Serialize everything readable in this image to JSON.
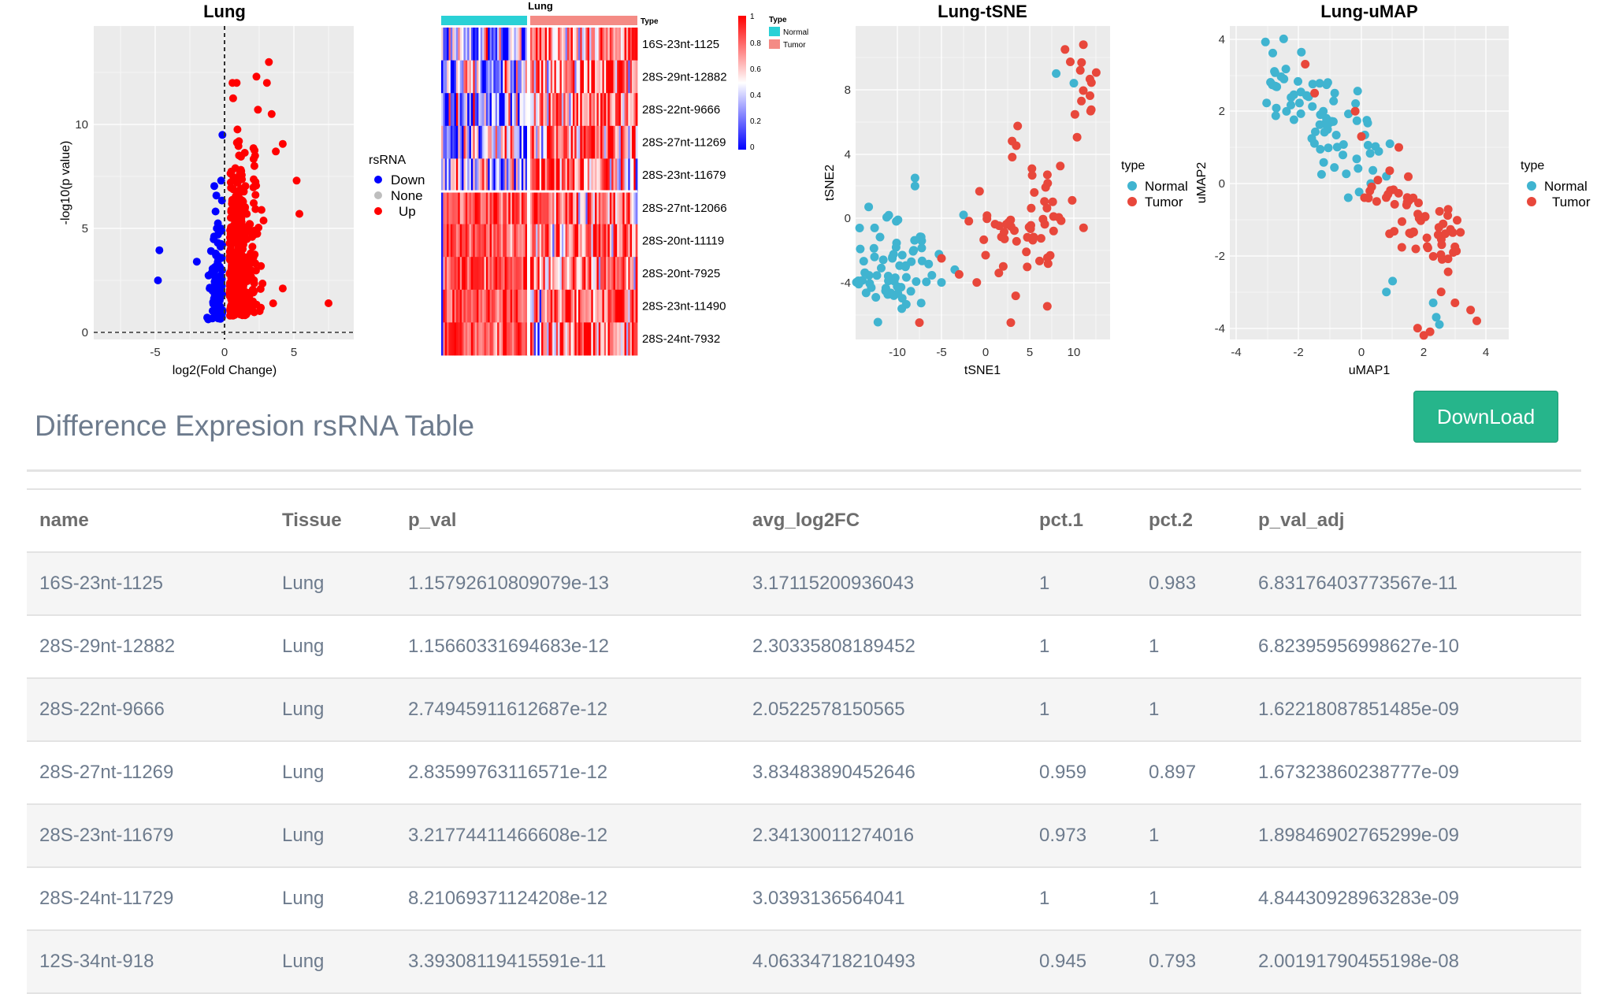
{
  "figure": {
    "volcano": {
      "title": "Lung",
      "xlabel": "log2(Fold Change)",
      "ylabel": "-log10(p value)",
      "xticks": [
        "-5",
        "0",
        "5"
      ],
      "yticks": [
        "0",
        "5",
        "10"
      ],
      "legend_title": "rsRNA",
      "legend_items": [
        "Down",
        "None",
        "Up"
      ],
      "colors": {
        "Down": "#0000ff",
        "None": "#bebebe",
        "Up": "#ff0000"
      }
    },
    "heatmap": {
      "title": "Lung",
      "type_label": "Type",
      "legend_title": "Type",
      "legend_items": [
        "Normal",
        "Tumor"
      ],
      "colors": {
        "Normal": "#2ad1d6",
        "Tumor": "#f48b85"
      },
      "scale_ticks": [
        "1",
        "0.8",
        "0.6",
        "0.4",
        "0.2",
        "0"
      ],
      "rows": [
        "16S-23nt-1125",
        "28S-29nt-12882",
        "28S-22nt-9666",
        "28S-27nt-11269",
        "28S-23nt-11679",
        "28S-27nt-12066",
        "28S-20nt-11119",
        "28S-20nt-7925",
        "28S-23nt-11490",
        "28S-24nt-7932"
      ]
    },
    "tsne": {
      "title": "Lung-tSNE",
      "xlabel": "tSNE1",
      "ylabel": "tSNE2",
      "xticks": [
        "-10",
        "-5",
        "0",
        "5",
        "10"
      ],
      "yticks": [
        "-4",
        "0",
        "4",
        "8"
      ],
      "legend_title": "type",
      "legend_items": [
        "Normal",
        "Tumor"
      ],
      "colors": {
        "Normal": "#40b4d0",
        "Tumor": "#e8473b"
      }
    },
    "umap": {
      "title": "Lung-uMAP",
      "xlabel": "uMAP1",
      "ylabel": "uMAP2",
      "xticks": [
        "-4",
        "-2",
        "0",
        "2",
        "4"
      ],
      "yticks": [
        "-4",
        "-2",
        "0",
        "2",
        "4"
      ],
      "legend_title": "type",
      "legend_items": [
        "Normal",
        "Tumor"
      ],
      "colors": {
        "Normal": "#40b4d0",
        "Tumor": "#e8473b"
      }
    }
  },
  "section": {
    "title": "Difference Expresion rsRNA Table",
    "download_label": "DownLoad"
  },
  "table": {
    "headers": [
      "name",
      "Tissue",
      "p_val",
      "avg_log2FC",
      "pct.1",
      "pct.2",
      "p_val_adj"
    ],
    "rows": [
      [
        "16S-23nt-1125",
        "Lung",
        "1.15792610809079e-13",
        "3.17115200936043",
        "1",
        "0.983",
        "6.83176403773567e-11"
      ],
      [
        "28S-29nt-12882",
        "Lung",
        "1.15660331694683e-12",
        "2.30335808189452",
        "1",
        "1",
        "6.82395956998627e-10"
      ],
      [
        "28S-22nt-9666",
        "Lung",
        "2.74945911612687e-12",
        "2.0522578150565",
        "1",
        "1",
        "1.62218087851485e-09"
      ],
      [
        "28S-27nt-11269",
        "Lung",
        "2.83599763116571e-12",
        "3.83483890452646",
        "0.959",
        "0.897",
        "1.67323860238777e-09"
      ],
      [
        "28S-23nt-11679",
        "Lung",
        "3.21774411466608e-12",
        "2.34130011274016",
        "0.973",
        "1",
        "1.89846902765299e-09"
      ],
      [
        "28S-24nt-11729",
        "Lung",
        "8.21069371124208e-12",
        "3.0393136564041",
        "1",
        "1",
        "4.84430928963283e-09"
      ],
      [
        "12S-34nt-918",
        "Lung",
        "3.39308119415591e-11",
        "4.06334718210493",
        "0.945",
        "0.793",
        "2.00191790455198e-08"
      ]
    ]
  }
}
